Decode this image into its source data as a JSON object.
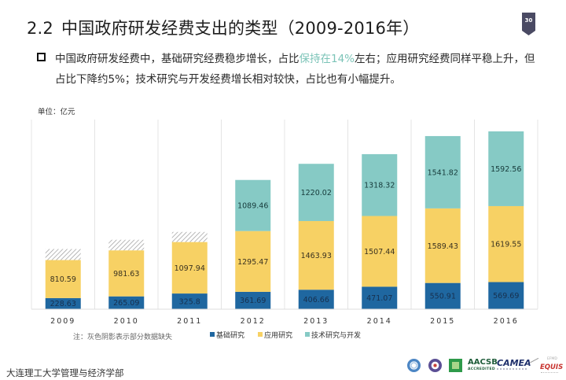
{
  "header": {
    "title_number": "2.2",
    "title_text": "中国政府研发经费支出的类型（2009-2016年）",
    "page_number": "30"
  },
  "bullet": {
    "line1_before": "中国政府研发经费中，基础研究经费稳步增长，占比",
    "line1_highlight": "保持在14%",
    "line1_after": "左右；应用研究经费同样平稳上升，但",
    "line2": "占比下降约5%；技术研究与开发经费增长相对较快，占比也有小幅提升。"
  },
  "colors": {
    "basic": "#1f67a0",
    "applied": "#f7d164",
    "tech": "#86cac5",
    "missing_hatch": "#9a9a9a",
    "highlight": "#7cc4b8",
    "badge": "#4a4a63"
  },
  "chart_data": {
    "type": "bar",
    "stacked": true,
    "title": "",
    "unit_label": "单位：亿元",
    "xlabel": "",
    "ylabel": "",
    "ylim": [
      0,
      4000
    ],
    "grid": "vertical",
    "legend_position": "bottom-right",
    "categories": [
      "2009",
      "2010",
      "2011",
      "2012",
      "2013",
      "2014",
      "2015",
      "2016"
    ],
    "series": [
      {
        "name": "基础研究",
        "key": "basic",
        "values": [
          228.63,
          265.09,
          325.8,
          361.69,
          406.66,
          471.07,
          550.91,
          569.69
        ]
      },
      {
        "name": "应用研究",
        "key": "applied",
        "values": [
          810.59,
          981.63,
          1097.94,
          1295.47,
          1463.93,
          1507.44,
          1589.43,
          1619.55
        ]
      },
      {
        "name": "技术研究与开发",
        "key": "tech",
        "values": [
          null,
          null,
          null,
          1089.46,
          1220.02,
          1318.32,
          1541.82,
          1592.56
        ]
      }
    ],
    "missing_estimate": [
      235,
      225,
      215,
      0,
      0,
      0,
      0,
      0
    ],
    "labels": [
      [
        "228.63",
        "265.09",
        "325.8",
        "361.69",
        "406.66",
        "471.07",
        "550.91",
        "569.69"
      ],
      [
        "810.59",
        "981.63",
        "1097.94",
        "1295.47",
        "1463.93",
        "1507.44",
        "1589.43",
        "1619.55"
      ],
      [
        "",
        "",
        "",
        "1089.46",
        "1220.02",
        "1318.32",
        "1541.82",
        "1592.56"
      ]
    ],
    "note": "注：灰色阴影表示部分数据缺失"
  },
  "footer": {
    "org": "大连理工大学管理与经济学部",
    "logos": {
      "aacsb": "AACSB",
      "aacsb_sub": "ACCREDITED",
      "camea": "CAMEA",
      "equis_efmd": "EFMD",
      "equis": "EQUIS"
    }
  }
}
